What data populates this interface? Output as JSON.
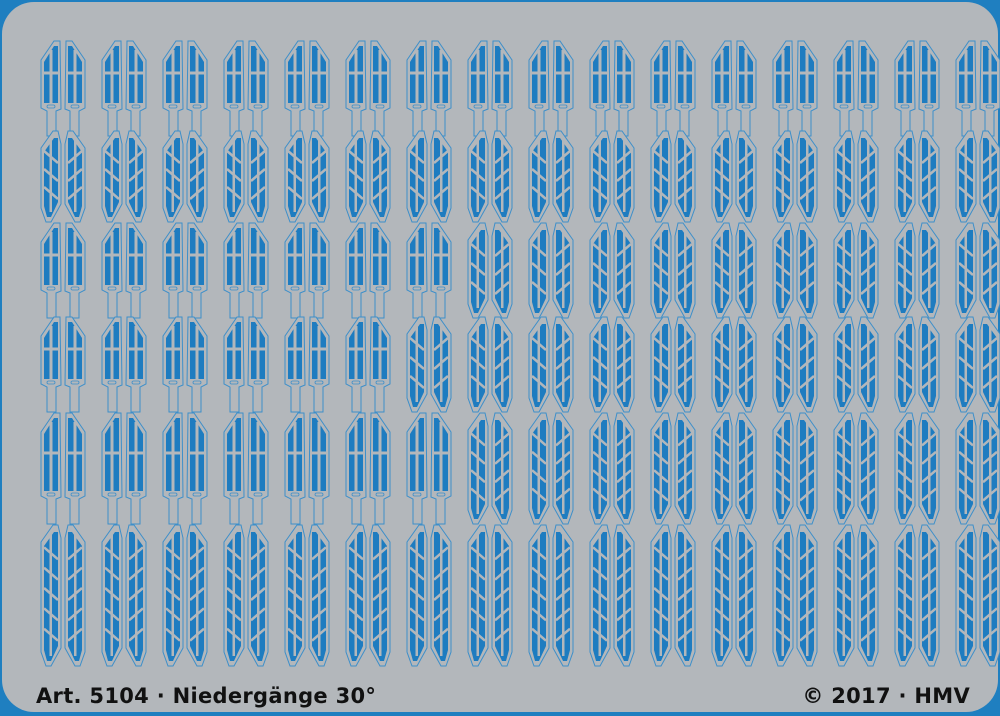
{
  "sheet": {
    "article_label": "Art. 5104 · Niedergänge 30°",
    "copyright_label": "© 2017 · HMV"
  },
  "colors": {
    "frame": "#1f7fc0",
    "plate": "#b3b7bb",
    "etch_fill": "#1e7cc0",
    "etch_outline": "#3d8fca"
  }
}
